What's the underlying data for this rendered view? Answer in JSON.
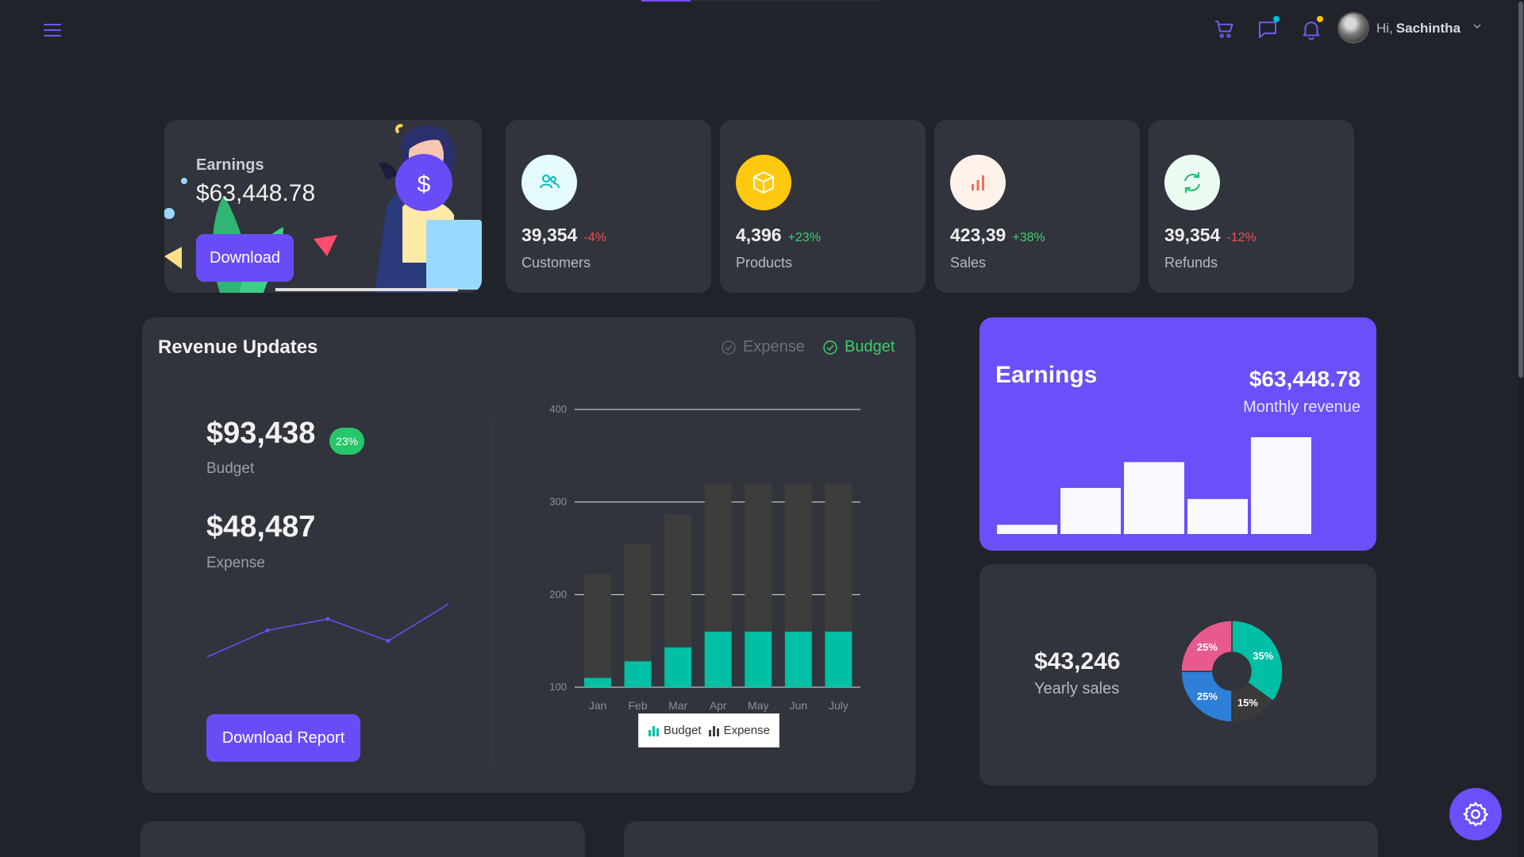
{
  "header": {
    "greeting": "Hi,",
    "user_name": "Sachintha",
    "icons": [
      "menu-icon",
      "cart-icon",
      "chat-icon",
      "bell-icon",
      "avatar",
      "chevron-down-icon"
    ],
    "badge_colors": {
      "chat": "#00bcd4",
      "bell": "#ffc107"
    }
  },
  "welcome": {
    "label": "Earnings",
    "amount": "$63,448.78",
    "button": "Download"
  },
  "stats": [
    {
      "value": "39,354",
      "change": "-4%",
      "label": "Customers",
      "icon": "users-icon",
      "bg": "#e6fbfb",
      "fg": "#00b8c6"
    },
    {
      "value": "4,396",
      "change": "+23%",
      "label": "Products",
      "icon": "box-icon",
      "bg": "#fec90f",
      "fg": "#ffffff"
    },
    {
      "value": "423,39",
      "change": "+38%",
      "label": "Sales",
      "icon": "bar-chart-icon",
      "bg": "#fff2ea",
      "fg": "#f06e5b"
    },
    {
      "value": "39,354",
      "change": "-12%",
      "label": "Refunds",
      "icon": "refresh-icon",
      "bg": "#ecfbf2",
      "fg": "#1fc177"
    }
  ],
  "revenue": {
    "title": "Revenue Updates",
    "legend_expense": "Expense",
    "legend_budget": "Budget",
    "budget_amount": "$93,438",
    "budget_badge": "23%",
    "budget_label": "Budget",
    "expense_amount": "$48,487",
    "expense_label": "Expense",
    "button": "Download Report"
  },
  "chart_data": {
    "type": "bar",
    "categories": [
      "Jan",
      "Feb",
      "Mar",
      "Apr",
      "May",
      "Jun",
      "July"
    ],
    "series": [
      {
        "name": "Budget",
        "values": [
          110,
          128,
          143,
          160,
          160,
          160,
          160
        ],
        "color": "#00bfa5"
      },
      {
        "name": "Expense",
        "values": [
          222,
          255,
          287,
          320,
          320,
          320,
          320
        ],
        "color": "#3d3d3d"
      }
    ],
    "yticks": [
      100,
      200,
      300,
      400
    ],
    "ylim": [
      100,
      400
    ],
    "legend": [
      "Budget",
      "Expense"
    ],
    "legend_placement": "bottom",
    "grid": true
  },
  "sparkline": {
    "values": [
      2,
      5,
      6.3,
      3.8,
      8
    ]
  },
  "earnings": {
    "title": "Earnings",
    "amount": "$63,448.78",
    "subtitle": "Monthly revenue",
    "bars": [
      1,
      5,
      7.8,
      3.8,
      10.5
    ]
  },
  "yearly": {
    "amount": "$43,246",
    "subtitle": "Yearly sales",
    "slices": [
      {
        "label": "35%",
        "value": 35,
        "color": "#00bfa5"
      },
      {
        "label": "15%",
        "value": 15,
        "color": "#3a3a3a"
      },
      {
        "label": "25%",
        "value": 25,
        "color": "#2d7fd8"
      },
      {
        "label": "25%",
        "value": 25,
        "color": "#e85a8f"
      }
    ]
  }
}
